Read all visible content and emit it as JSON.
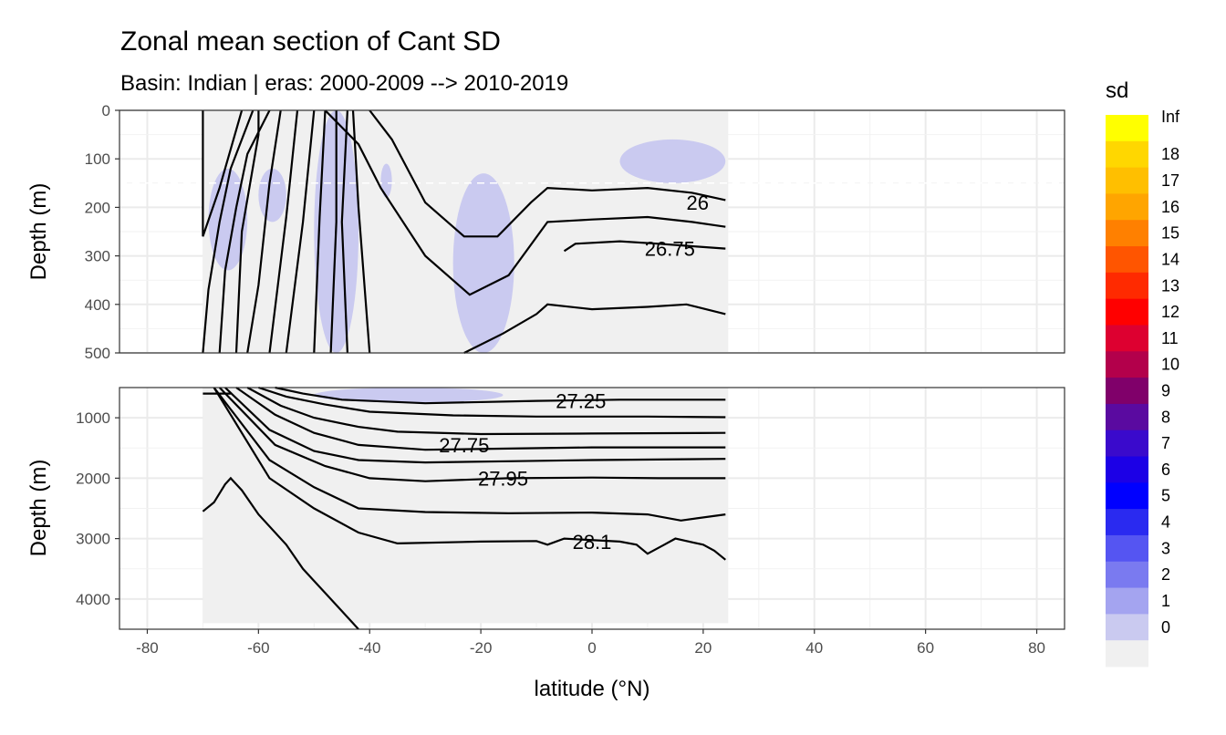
{
  "chart_data": {
    "type": "heatmap",
    "title": "Zonal mean section of Cant SD",
    "subtitle": "Basin: Indian | eras: 2000-2009 --> 2010-2019",
    "xlabel": "latitude (°N)",
    "ylabel": "Depth (m)",
    "xlim": [
      -85,
      85
    ],
    "x_ticks": [
      -80,
      -60,
      -40,
      -20,
      0,
      20,
      40,
      60,
      80
    ],
    "panels": [
      {
        "name": "upper",
        "ylim": [
          0,
          500
        ],
        "y_ticks": [
          0,
          100,
          200,
          300,
          400,
          500
        ]
      },
      {
        "name": "lower",
        "ylim": [
          500,
          4500
        ],
        "y_ticks": [
          1000,
          2000,
          3000,
          4000
        ]
      }
    ],
    "data_extent": {
      "lat_min": -70,
      "lat_max": 24.5,
      "max_depth": 4400
    },
    "reference_depth_line": 150,
    "sd_regions_ge_1": [
      {
        "panel": "upper",
        "lat": [
          -50,
          -42
        ],
        "depth": [
          0,
          500
        ]
      },
      {
        "panel": "upper",
        "lat": [
          -69,
          -62
        ],
        "depth": [
          120,
          330
        ]
      },
      {
        "panel": "upper",
        "lat": [
          -60,
          -55
        ],
        "depth": [
          120,
          230
        ]
      },
      {
        "panel": "upper",
        "lat": [
          -38,
          -36
        ],
        "depth": [
          110,
          180
        ]
      },
      {
        "panel": "upper",
        "lat": [
          -25,
          -14
        ],
        "depth": [
          130,
          500
        ]
      },
      {
        "panel": "upper",
        "lat": [
          5,
          24
        ],
        "depth": [
          60,
          150
        ]
      },
      {
        "panel": "lower",
        "lat": [
          -50,
          -16
        ],
        "depth": [
          500,
          750
        ]
      }
    ],
    "contours": [
      {
        "level": "26",
        "label_at": [
          19,
          190
        ]
      },
      {
        "level": "26.75",
        "label_at": [
          14,
          285
        ]
      },
      {
        "level": "27.25",
        "label_at": [
          -2,
          720
        ]
      },
      {
        "level": "27.75",
        "label_at": [
          -23,
          1450
        ]
      },
      {
        "level": "27.95",
        "label_at": [
          -16,
          2000
        ]
      },
      {
        "level": "28.1",
        "label_at": [
          0,
          3050
        ]
      }
    ],
    "legend": {
      "title": "sd",
      "position": "right",
      "labels": [
        "Inf",
        "18",
        "17",
        "16",
        "15",
        "14",
        "13",
        "12",
        "11",
        "10",
        "9",
        "8",
        "7",
        "6",
        "5",
        "4",
        "3",
        "2",
        "1",
        "0"
      ],
      "colors": [
        "#ffff00",
        "#ffd700",
        "#ffbf00",
        "#ffa500",
        "#ff8000",
        "#ff5500",
        "#ff2a00",
        "#ff0000",
        "#dd0030",
        "#b3004b",
        "#80006a",
        "#5a0aa0",
        "#3a0acc",
        "#1c00e6",
        "#0000ff",
        "#2a2af0",
        "#5555f2",
        "#7a7af0",
        "#a4a4f0",
        "#cacaf0",
        "#f0f0f0"
      ]
    },
    "grid": true
  }
}
